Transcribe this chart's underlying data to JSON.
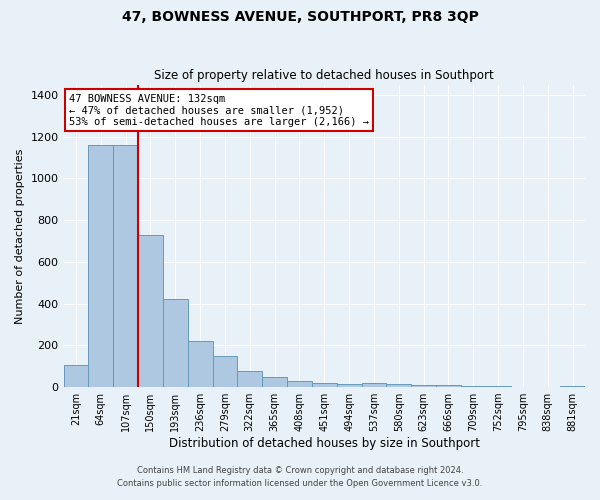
{
  "title": "47, BOWNESS AVENUE, SOUTHPORT, PR8 3QP",
  "subtitle": "Size of property relative to detached houses in Southport",
  "xlabel": "Distribution of detached houses by size in Southport",
  "ylabel": "Number of detached properties",
  "bar_labels": [
    "21sqm",
    "64sqm",
    "107sqm",
    "150sqm",
    "193sqm",
    "236sqm",
    "279sqm",
    "322sqm",
    "365sqm",
    "408sqm",
    "451sqm",
    "494sqm",
    "537sqm",
    "580sqm",
    "623sqm",
    "666sqm",
    "709sqm",
    "752sqm",
    "795sqm",
    "838sqm",
    "881sqm"
  ],
  "bar_values": [
    108,
    1160,
    1160,
    730,
    420,
    220,
    150,
    75,
    50,
    28,
    18,
    15,
    18,
    15,
    10,
    8,
    5,
    3,
    2,
    2,
    5
  ],
  "bar_color": "#adc8e0",
  "bar_edge_color": "#6699bb",
  "bg_color": "#e8f0f8",
  "grid_color": "#ffffff",
  "vline_x_index": 2.5,
  "vline_color": "#cc0000",
  "annotation_title": "47 BOWNESS AVENUE: 132sqm",
  "annotation_line1": "← 47% of detached houses are smaller (1,952)",
  "annotation_line2": "53% of semi-detached houses are larger (2,166) →",
  "annotation_box_color": "#ffffff",
  "annotation_border_color": "#cc0000",
  "ylim": [
    0,
    1450
  ],
  "yticks": [
    0,
    200,
    400,
    600,
    800,
    1000,
    1200,
    1400
  ],
  "footer_line1": "Contains HM Land Registry data © Crown copyright and database right 2024.",
  "footer_line2": "Contains public sector information licensed under the Open Government Licence v3.0."
}
